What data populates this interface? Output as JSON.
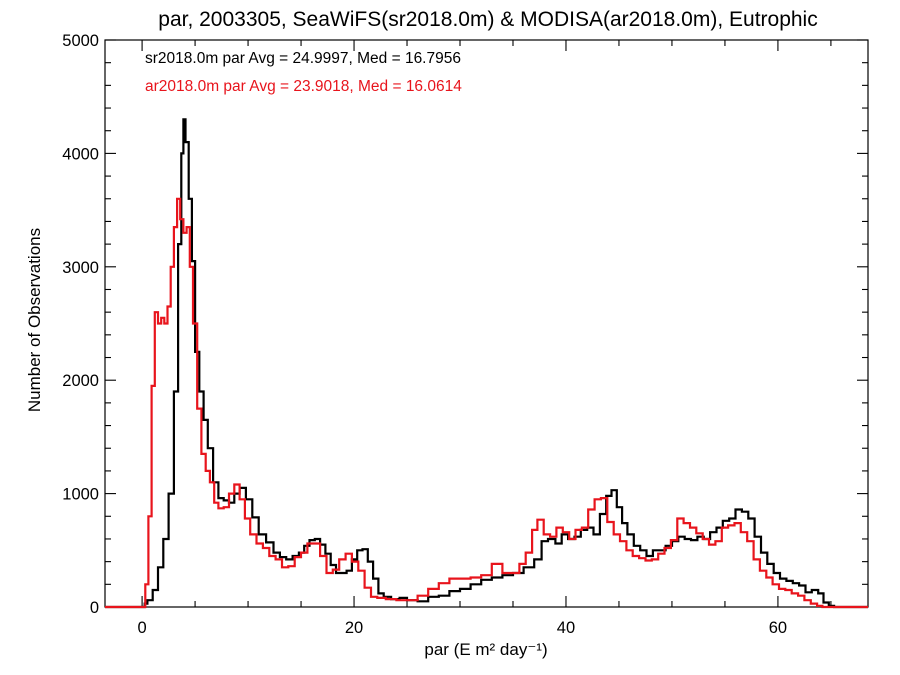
{
  "chart_data": {
    "type": "line",
    "title": "par, 2003305, SeaWiFS(sr2018.0m) & MODISA(ar2018.0m), Eutrophic",
    "xlabel": "par (E m² day⁻¹)",
    "ylabel": "Number of Observations",
    "xlim": [
      -3.5,
      68.5
    ],
    "ylim": [
      0,
      5000
    ],
    "xticks": [
      0,
      20,
      40,
      60
    ],
    "yticks": [
      0,
      1000,
      2000,
      3000,
      4000,
      5000
    ],
    "x_minor_step": 5,
    "y_minor_step": 200,
    "grid": false,
    "legend_position": "top-left",
    "annotations": [
      {
        "text": "sr2018.0m par Avg = 24.9997, Med = 16.7956",
        "color": "#000000"
      },
      {
        "text": "ar2018.0m par Avg = 23.9018, Med = 16.0614",
        "color": "#e8141c"
      }
    ],
    "series": [
      {
        "color": "#000000",
        "points": [
          [
            -3.5,
            0
          ],
          [
            0,
            0
          ],
          [
            0.25,
            30
          ],
          [
            0.5,
            60
          ],
          [
            1,
            150
          ],
          [
            1.5,
            350
          ],
          [
            2,
            600
          ],
          [
            2.5,
            1000
          ],
          [
            3,
            1900
          ],
          [
            3.4,
            3200
          ],
          [
            3.7,
            4000
          ],
          [
            3.9,
            4300
          ],
          [
            4.1,
            4100
          ],
          [
            4.4,
            3600
          ],
          [
            4.7,
            3050
          ],
          [
            5,
            2250
          ],
          [
            5.4,
            1900
          ],
          [
            5.8,
            1650
          ],
          [
            6.2,
            1400
          ],
          [
            6.7,
            1100
          ],
          [
            7.2,
            960
          ],
          [
            7.7,
            940
          ],
          [
            8.2,
            920
          ],
          [
            8.7,
            1000
          ],
          [
            9.2,
            1050
          ],
          [
            9.8,
            950
          ],
          [
            10.4,
            790
          ],
          [
            11,
            640
          ],
          [
            11.7,
            570
          ],
          [
            12.4,
            480
          ],
          [
            13,
            440
          ],
          [
            13.6,
            420
          ],
          [
            14.2,
            450
          ],
          [
            14.8,
            480
          ],
          [
            15.3,
            540
          ],
          [
            15.8,
            590
          ],
          [
            16.3,
            600
          ],
          [
            16.8,
            550
          ],
          [
            17.3,
            470
          ],
          [
            17.8,
            370
          ],
          [
            18.3,
            300
          ],
          [
            18.8,
            300
          ],
          [
            19.3,
            320
          ],
          [
            19.8,
            420
          ],
          [
            20.3,
            500
          ],
          [
            20.8,
            510
          ],
          [
            21.3,
            400
          ],
          [
            21.8,
            250
          ],
          [
            22.3,
            120
          ],
          [
            22.8,
            90
          ],
          [
            23.5,
            70
          ],
          [
            24.3,
            80
          ],
          [
            25,
            60
          ],
          [
            26,
            50
          ],
          [
            27,
            90
          ],
          [
            28,
            100
          ],
          [
            29,
            140
          ],
          [
            30,
            160
          ],
          [
            31,
            200
          ],
          [
            32,
            240
          ],
          [
            33,
            260
          ],
          [
            34,
            280
          ],
          [
            35,
            300
          ],
          [
            36,
            350
          ],
          [
            37,
            420
          ],
          [
            37.7,
            580
          ],
          [
            38.3,
            600
          ],
          [
            39,
            560
          ],
          [
            39.6,
            640
          ],
          [
            40.2,
            600
          ],
          [
            40.8,
            620
          ],
          [
            41.4,
            680
          ],
          [
            42,
            700
          ],
          [
            42.6,
            640
          ],
          [
            43.2,
            820
          ],
          [
            43.8,
            980
          ],
          [
            44.3,
            1030
          ],
          [
            44.8,
            880
          ],
          [
            45.3,
            740
          ],
          [
            45.8,
            640
          ],
          [
            46.4,
            540
          ],
          [
            47,
            500
          ],
          [
            47.6,
            450
          ],
          [
            48.2,
            500
          ],
          [
            48.8,
            500
          ],
          [
            49.4,
            540
          ],
          [
            50,
            580
          ],
          [
            50.6,
            620
          ],
          [
            51.2,
            600
          ],
          [
            51.8,
            590
          ],
          [
            52.4,
            620
          ],
          [
            53,
            600
          ],
          [
            53.6,
            660
          ],
          [
            54.2,
            700
          ],
          [
            54.8,
            760
          ],
          [
            55.4,
            780
          ],
          [
            56,
            860
          ],
          [
            56.6,
            840
          ],
          [
            57.2,
            780
          ],
          [
            57.8,
            620
          ],
          [
            58.4,
            480
          ],
          [
            59,
            380
          ],
          [
            59.6,
            300
          ],
          [
            60.2,
            250
          ],
          [
            60.8,
            230
          ],
          [
            61.4,
            210
          ],
          [
            62,
            190
          ],
          [
            62.6,
            130
          ],
          [
            63.2,
            150
          ],
          [
            63.8,
            120
          ],
          [
            64.3,
            40
          ],
          [
            64.8,
            10
          ],
          [
            65.3,
            0
          ],
          [
            68.5,
            0
          ]
        ]
      },
      {
        "color": "#e8141c",
        "points": [
          [
            -3.5,
            0
          ],
          [
            0,
            0
          ],
          [
            0.3,
            200
          ],
          [
            0.6,
            800
          ],
          [
            0.9,
            1950
          ],
          [
            1.2,
            2600
          ],
          [
            1.5,
            2500
          ],
          [
            1.8,
            2550
          ],
          [
            2.1,
            2500
          ],
          [
            2.4,
            2650
          ],
          [
            2.7,
            3000
          ],
          [
            3,
            3350
          ],
          [
            3.3,
            3600
          ],
          [
            3.6,
            3420
          ],
          [
            3.9,
            3300
          ],
          [
            4.2,
            3350
          ],
          [
            4.5,
            3000
          ],
          [
            4.8,
            2500
          ],
          [
            5.2,
            1750
          ],
          [
            5.6,
            1350
          ],
          [
            6,
            1200
          ],
          [
            6.4,
            1100
          ],
          [
            6.8,
            920
          ],
          [
            7.2,
            870
          ],
          [
            7.7,
            880
          ],
          [
            8.2,
            1000
          ],
          [
            8.7,
            1080
          ],
          [
            9.2,
            950
          ],
          [
            9.7,
            780
          ],
          [
            10.2,
            640
          ],
          [
            10.8,
            560
          ],
          [
            11.4,
            520
          ],
          [
            12,
            450
          ],
          [
            12.6,
            420
          ],
          [
            13.2,
            350
          ],
          [
            13.8,
            360
          ],
          [
            14.4,
            440
          ],
          [
            15,
            480
          ],
          [
            15.6,
            560
          ],
          [
            16.2,
            560
          ],
          [
            16.8,
            450
          ],
          [
            17.4,
            300
          ],
          [
            18,
            330
          ],
          [
            18.6,
            420
          ],
          [
            19.2,
            470
          ],
          [
            19.8,
            400
          ],
          [
            20.4,
            320
          ],
          [
            21,
            170
          ],
          [
            21.6,
            90
          ],
          [
            22.2,
            80
          ],
          [
            23,
            70
          ],
          [
            24,
            60
          ],
          [
            25,
            60
          ],
          [
            26,
            100
          ],
          [
            27,
            160
          ],
          [
            28,
            210
          ],
          [
            29,
            250
          ],
          [
            30,
            250
          ],
          [
            31,
            260
          ],
          [
            32,
            280
          ],
          [
            33,
            380
          ],
          [
            34,
            300
          ],
          [
            35,
            300
          ],
          [
            35.6,
            380
          ],
          [
            36.2,
            480
          ],
          [
            36.8,
            680
          ],
          [
            37.3,
            770
          ],
          [
            37.9,
            640
          ],
          [
            38.5,
            620
          ],
          [
            39.1,
            700
          ],
          [
            39.7,
            660
          ],
          [
            40.3,
            600
          ],
          [
            40.9,
            680
          ],
          [
            41.5,
            700
          ],
          [
            42.1,
            860
          ],
          [
            42.7,
            950
          ],
          [
            43.3,
            960
          ],
          [
            43.9,
            750
          ],
          [
            44.5,
            640
          ],
          [
            45.1,
            580
          ],
          [
            45.7,
            500
          ],
          [
            46.3,
            450
          ],
          [
            46.9,
            430
          ],
          [
            47.5,
            410
          ],
          [
            48.1,
            420
          ],
          [
            48.7,
            470
          ],
          [
            49.3,
            520
          ],
          [
            49.9,
            590
          ],
          [
            50.5,
            780
          ],
          [
            51.1,
            740
          ],
          [
            51.7,
            700
          ],
          [
            52.3,
            650
          ],
          [
            52.9,
            600
          ],
          [
            53.5,
            550
          ],
          [
            54.1,
            580
          ],
          [
            54.7,
            700
          ],
          [
            55.3,
            720
          ],
          [
            55.9,
            740
          ],
          [
            56.5,
            660
          ],
          [
            57.1,
            580
          ],
          [
            57.7,
            420
          ],
          [
            58.3,
            320
          ],
          [
            58.9,
            260
          ],
          [
            59.5,
            200
          ],
          [
            60.1,
            160
          ],
          [
            60.7,
            150
          ],
          [
            61.3,
            120
          ],
          [
            61.9,
            100
          ],
          [
            62.5,
            60
          ],
          [
            63.1,
            30
          ],
          [
            63.7,
            10
          ],
          [
            64.2,
            0
          ],
          [
            68.5,
            0
          ]
        ]
      }
    ]
  }
}
